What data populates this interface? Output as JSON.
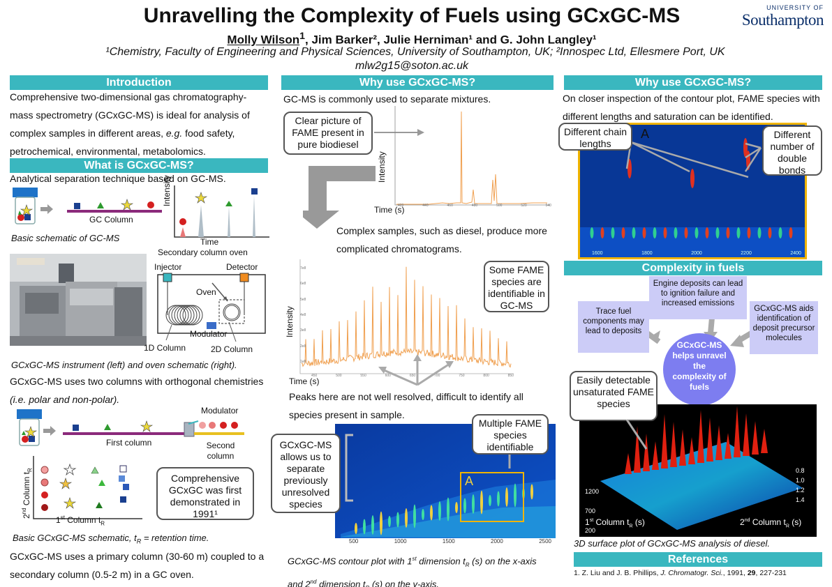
{
  "header": {
    "title": "Unravelling the Complexity of Fuels using GCxGC-MS",
    "author1": "Molly Wilson",
    "author1_sup": "1",
    "authors_rest": ", Jim Barker², Julie Herniman¹ and G. John Langley¹",
    "affiliation": "¹Chemistry, Faculty of Engineering and Physical Sciences, University of Southampton, UK; ²Innospec Ltd, Ellesmere Port, UK",
    "email": "mlw2g15@soton.ac.uk",
    "logo_small": "UNIVERSITY OF",
    "logo_big": "Southampton"
  },
  "col1": {
    "intro_heading": "Introduction",
    "intro_text_a": "Comprehensive two-dimensional gas chromatography-mass spectrometry (GCxGC-MS) is ideal for analysis of complex samples in different areas, ",
    "intro_text_eg": "e.g.",
    "intro_text_b": " food safety, petrochemical, environmental, metabolomics.",
    "what_heading": "What is GCxGC-MS?",
    "what_text": "Analytical separation technique based on GC-MS.",
    "gc_column_label": "GC Column",
    "intensity_label": "Intensity",
    "time_label": "Time",
    "basic_caption": "Basic schematic of GC-MS",
    "oven_title": "Secondary column oven",
    "injector": "Injector",
    "detector": "Detector",
    "oven": "Oven",
    "modulator": "Modulator",
    "col1d": "1D Column",
    "col2d": "2D Column",
    "instrument_caption": "GCxGC-MS instrument (left) and oven schematic (right).",
    "two_columns_text_a": "GCxGC-MS uses two columns with orthogonal chemistries ",
    "two_columns_text_ie": "(i.e. polar and non-polar).",
    "modulator2": "Modulator",
    "first_column": "First column",
    "second_column": "Second column",
    "axis_col2": "Column t",
    "axis_col2_sub": "R",
    "axis_col2_pre": "2",
    "axis_col2_pre_sup": "nd",
    "axis_col1_pre": "1",
    "axis_col1_sup": "st",
    "axis_col1": " Column t",
    "axis_col1_sub": "R",
    "first_demo": "Comprehensive GCxGC was first demonstrated in 1991¹",
    "schematic_caption": "Basic GCxGC-MS schematic, t",
    "schematic_caption_sub": "R",
    "schematic_caption_end": " = retention time.",
    "primary_text": "GCxGC-MS uses a primary column (30-60 m) coupled to a secondary column (0.5-2 m) in a GC oven."
  },
  "col2": {
    "heading": "Why use GCxGC-MS?",
    "gcms_text": "GC-MS is commonly used to separate mixtures.",
    "callout_fame": "Clear picture of FAME present in pure biodiesel",
    "intensity": "Intensity",
    "time": "Time (s)",
    "complex_text": "Complex samples, such as diesel, produce more complicated chromatograms.",
    "callout_some": "Some FAME species are identifiable in GC-MS",
    "time2": "Time (s)",
    "peaks_text": "Peaks here are not well resolved, difficult to identify all species present in sample.",
    "callout_separate": "GCxGC-MS allows us to separate previously unresolved species",
    "callout_multiple": "Multiple FAME species identifiable",
    "box_label": "A",
    "contour_caption_a": "GCxGC-MS contour plot with 1",
    "contour_caption_sup1": "st",
    "contour_caption_b": " dimension t",
    "contour_caption_sub1": "R",
    "contour_caption_c": " (s) on the x-axis and 2",
    "contour_caption_sup2": "nd",
    "contour_caption_d": " dimension t",
    "contour_caption_sub2": "R",
    "contour_caption_e": " (s) on the y-axis.",
    "ticks_x_bio": [
      "420",
      "440",
      "460",
      "480",
      "500",
      "520",
      "540"
    ],
    "ticks_x_diesel": [
      "450",
      "500",
      "550",
      "600",
      "650",
      "700",
      "750",
      "800",
      "850"
    ],
    "ticks_y_diesel": [
      "7e8",
      "6e8",
      "5e8",
      "4e8",
      "3e8",
      "2e8",
      "1e8"
    ],
    "ticks_x_contour": [
      "500",
      "1000",
      "1500",
      "2000",
      "2500"
    ]
  },
  "col3": {
    "heading": "Why use GCxGC-MS?",
    "closer_text": "On closer inspection of the contour plot, FAME species with different lengths and saturation can be identified.",
    "callout_chain": "Different chain lengths",
    "callout_double": "Different number of double bonds",
    "zoom_label": "A",
    "ticks_x_zoom": [
      "1600",
      "1800",
      "2000",
      "2200",
      "2400"
    ],
    "complexity_heading": "Complexity in fuels",
    "engine": "Engine deposits can lead to ignition failure and increased emissions",
    "trace": "Trace fuel components may lead to deposits",
    "aids": "GCxGC-MS aids identification of deposit precursor molecules",
    "center": "GCxGC-MS helps unravel the complexity of fuels",
    "callout_unsat": "Easily detectable unsaturated FAME species",
    "surf_x_label": "1",
    "surf_x_sup": "st",
    "surf_x_rest": " Column t",
    "surf_x_sub": "R",
    "surf_x_unit": " (s)",
    "surf_y_label": "2",
    "surf_y_sup": "nd",
    "surf_y_rest": " Column t",
    "surf_y_sub": "R",
    "surf_y_unit": " (s)",
    "surf_ticks_left": [
      "1200",
      "700",
      "200"
    ],
    "surf_ticks_right": [
      "0.8",
      "1.0",
      "1.2",
      "1.4"
    ],
    "surface_caption": "3D surface plot of GCxGC-MS analysis of diesel.",
    "ref_heading": "References",
    "ref_text_a": "1. Z. Liu and J. B. Phillips, ",
    "ref_journal": "J. Chromatogr. Sci.",
    "ref_text_b": ", 1991, ",
    "ref_vol": "29",
    "ref_text_c": ", 227-231"
  },
  "colors": {
    "bar": "#3ab7bf",
    "chromatogram": "#f0a050",
    "contour_bg": "#083796",
    "highlight_box": "#f0b400",
    "lavender": "#ccccf7",
    "center_circle": "#7d7df0"
  }
}
